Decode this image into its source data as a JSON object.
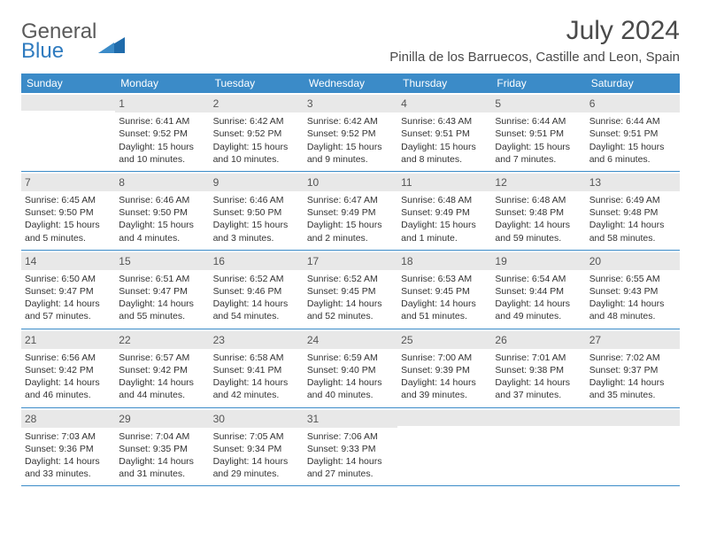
{
  "branding": {
    "logoTop": "General",
    "logoBottom": "Blue",
    "logoColorTop": "#5a5a5a",
    "logoColorBottom": "#2f7bbf",
    "triangleColor": "#1f6bab"
  },
  "title": "July 2024",
  "location": "Pinilla de los Barruecos, Castille and Leon, Spain",
  "colors": {
    "headerBar": "#3b8bc8",
    "dateBar": "#e8e8e8",
    "ruleLine": "#3b8bc8",
    "text": "#333333",
    "titleText": "#4a4a4a",
    "background": "#ffffff"
  },
  "layout": {
    "widthPx": 792,
    "heightPx": 612,
    "columns": 7,
    "rows": 5,
    "weekdayFontSize": 12,
    "dateFontSize": 12,
    "bodyFontSize": 10.5,
    "titleFontSize": 30,
    "locationFontSize": 15
  },
  "weekdays": [
    "Sunday",
    "Monday",
    "Tuesday",
    "Wednesday",
    "Thursday",
    "Friday",
    "Saturday"
  ],
  "weeks": [
    [
      {
        "empty": true
      },
      {
        "date": "1",
        "sunrise": "Sunrise: 6:41 AM",
        "sunset": "Sunset: 9:52 PM",
        "day1": "Daylight: 15 hours",
        "day2": "and 10 minutes."
      },
      {
        "date": "2",
        "sunrise": "Sunrise: 6:42 AM",
        "sunset": "Sunset: 9:52 PM",
        "day1": "Daylight: 15 hours",
        "day2": "and 10 minutes."
      },
      {
        "date": "3",
        "sunrise": "Sunrise: 6:42 AM",
        "sunset": "Sunset: 9:52 PM",
        "day1": "Daylight: 15 hours",
        "day2": "and 9 minutes."
      },
      {
        "date": "4",
        "sunrise": "Sunrise: 6:43 AM",
        "sunset": "Sunset: 9:51 PM",
        "day1": "Daylight: 15 hours",
        "day2": "and 8 minutes."
      },
      {
        "date": "5",
        "sunrise": "Sunrise: 6:44 AM",
        "sunset": "Sunset: 9:51 PM",
        "day1": "Daylight: 15 hours",
        "day2": "and 7 minutes."
      },
      {
        "date": "6",
        "sunrise": "Sunrise: 6:44 AM",
        "sunset": "Sunset: 9:51 PM",
        "day1": "Daylight: 15 hours",
        "day2": "and 6 minutes."
      }
    ],
    [
      {
        "date": "7",
        "sunrise": "Sunrise: 6:45 AM",
        "sunset": "Sunset: 9:50 PM",
        "day1": "Daylight: 15 hours",
        "day2": "and 5 minutes."
      },
      {
        "date": "8",
        "sunrise": "Sunrise: 6:46 AM",
        "sunset": "Sunset: 9:50 PM",
        "day1": "Daylight: 15 hours",
        "day2": "and 4 minutes."
      },
      {
        "date": "9",
        "sunrise": "Sunrise: 6:46 AM",
        "sunset": "Sunset: 9:50 PM",
        "day1": "Daylight: 15 hours",
        "day2": "and 3 minutes."
      },
      {
        "date": "10",
        "sunrise": "Sunrise: 6:47 AM",
        "sunset": "Sunset: 9:49 PM",
        "day1": "Daylight: 15 hours",
        "day2": "and 2 minutes."
      },
      {
        "date": "11",
        "sunrise": "Sunrise: 6:48 AM",
        "sunset": "Sunset: 9:49 PM",
        "day1": "Daylight: 15 hours",
        "day2": "and 1 minute."
      },
      {
        "date": "12",
        "sunrise": "Sunrise: 6:48 AM",
        "sunset": "Sunset: 9:48 PM",
        "day1": "Daylight: 14 hours",
        "day2": "and 59 minutes."
      },
      {
        "date": "13",
        "sunrise": "Sunrise: 6:49 AM",
        "sunset": "Sunset: 9:48 PM",
        "day1": "Daylight: 14 hours",
        "day2": "and 58 minutes."
      }
    ],
    [
      {
        "date": "14",
        "sunrise": "Sunrise: 6:50 AM",
        "sunset": "Sunset: 9:47 PM",
        "day1": "Daylight: 14 hours",
        "day2": "and 57 minutes."
      },
      {
        "date": "15",
        "sunrise": "Sunrise: 6:51 AM",
        "sunset": "Sunset: 9:47 PM",
        "day1": "Daylight: 14 hours",
        "day2": "and 55 minutes."
      },
      {
        "date": "16",
        "sunrise": "Sunrise: 6:52 AM",
        "sunset": "Sunset: 9:46 PM",
        "day1": "Daylight: 14 hours",
        "day2": "and 54 minutes."
      },
      {
        "date": "17",
        "sunrise": "Sunrise: 6:52 AM",
        "sunset": "Sunset: 9:45 PM",
        "day1": "Daylight: 14 hours",
        "day2": "and 52 minutes."
      },
      {
        "date": "18",
        "sunrise": "Sunrise: 6:53 AM",
        "sunset": "Sunset: 9:45 PM",
        "day1": "Daylight: 14 hours",
        "day2": "and 51 minutes."
      },
      {
        "date": "19",
        "sunrise": "Sunrise: 6:54 AM",
        "sunset": "Sunset: 9:44 PM",
        "day1": "Daylight: 14 hours",
        "day2": "and 49 minutes."
      },
      {
        "date": "20",
        "sunrise": "Sunrise: 6:55 AM",
        "sunset": "Sunset: 9:43 PM",
        "day1": "Daylight: 14 hours",
        "day2": "and 48 minutes."
      }
    ],
    [
      {
        "date": "21",
        "sunrise": "Sunrise: 6:56 AM",
        "sunset": "Sunset: 9:42 PM",
        "day1": "Daylight: 14 hours",
        "day2": "and 46 minutes."
      },
      {
        "date": "22",
        "sunrise": "Sunrise: 6:57 AM",
        "sunset": "Sunset: 9:42 PM",
        "day1": "Daylight: 14 hours",
        "day2": "and 44 minutes."
      },
      {
        "date": "23",
        "sunrise": "Sunrise: 6:58 AM",
        "sunset": "Sunset: 9:41 PM",
        "day1": "Daylight: 14 hours",
        "day2": "and 42 minutes."
      },
      {
        "date": "24",
        "sunrise": "Sunrise: 6:59 AM",
        "sunset": "Sunset: 9:40 PM",
        "day1": "Daylight: 14 hours",
        "day2": "and 40 minutes."
      },
      {
        "date": "25",
        "sunrise": "Sunrise: 7:00 AM",
        "sunset": "Sunset: 9:39 PM",
        "day1": "Daylight: 14 hours",
        "day2": "and 39 minutes."
      },
      {
        "date": "26",
        "sunrise": "Sunrise: 7:01 AM",
        "sunset": "Sunset: 9:38 PM",
        "day1": "Daylight: 14 hours",
        "day2": "and 37 minutes."
      },
      {
        "date": "27",
        "sunrise": "Sunrise: 7:02 AM",
        "sunset": "Sunset: 9:37 PM",
        "day1": "Daylight: 14 hours",
        "day2": "and 35 minutes."
      }
    ],
    [
      {
        "date": "28",
        "sunrise": "Sunrise: 7:03 AM",
        "sunset": "Sunset: 9:36 PM",
        "day1": "Daylight: 14 hours",
        "day2": "and 33 minutes."
      },
      {
        "date": "29",
        "sunrise": "Sunrise: 7:04 AM",
        "sunset": "Sunset: 9:35 PM",
        "day1": "Daylight: 14 hours",
        "day2": "and 31 minutes."
      },
      {
        "date": "30",
        "sunrise": "Sunrise: 7:05 AM",
        "sunset": "Sunset: 9:34 PM",
        "day1": "Daylight: 14 hours",
        "day2": "and 29 minutes."
      },
      {
        "date": "31",
        "sunrise": "Sunrise: 7:06 AM",
        "sunset": "Sunset: 9:33 PM",
        "day1": "Daylight: 14 hours",
        "day2": "and 27 minutes."
      },
      {
        "empty": true
      },
      {
        "empty": true
      },
      {
        "empty": true
      }
    ]
  ]
}
